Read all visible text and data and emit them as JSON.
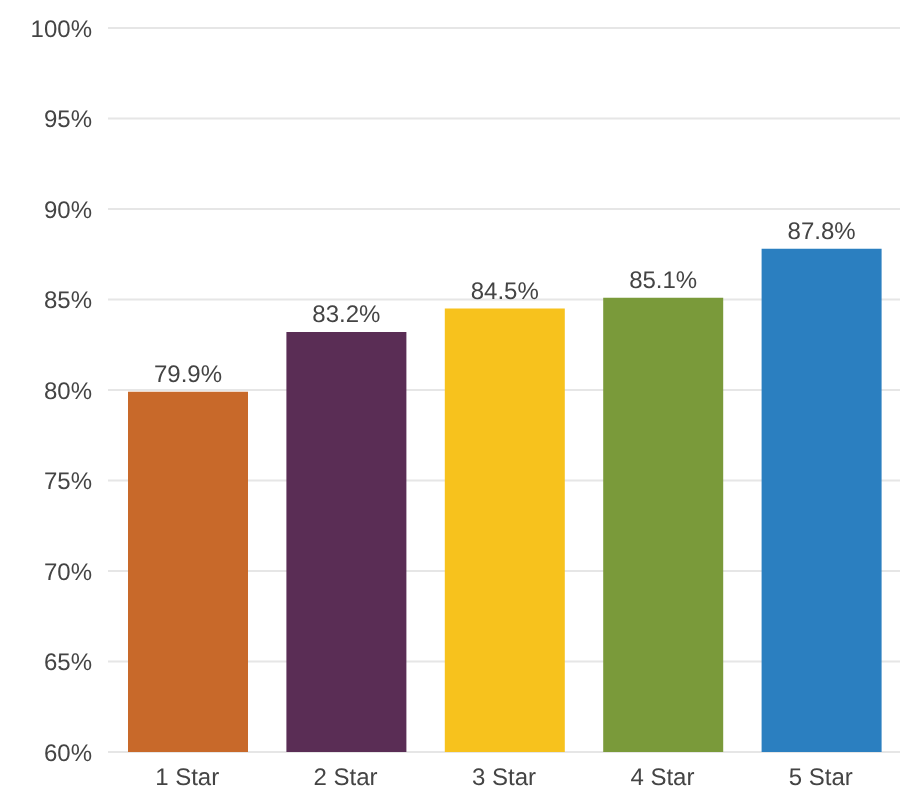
{
  "chart_data": {
    "type": "bar",
    "categories": [
      "1 Star",
      "2 Star",
      "3 Star",
      "4 Star",
      "5 Star"
    ],
    "values": [
      79.9,
      83.2,
      84.5,
      85.1,
      87.8
    ],
    "colors": [
      "#c8692a",
      "#5a2d55",
      "#f7c21d",
      "#7a9a3a",
      "#2b7fc0"
    ],
    "value_labels": [
      "79.9%",
      "83.2%",
      "84.5%",
      "85.1%",
      "87.8%"
    ],
    "ylim": [
      60,
      100
    ],
    "yticks": [
      {
        "value": 60,
        "label": "60%"
      },
      {
        "value": 65,
        "label": "65%"
      },
      {
        "value": 70,
        "label": "70%"
      },
      {
        "value": 75,
        "label": "75%"
      },
      {
        "value": 80,
        "label": "80%"
      },
      {
        "value": 85,
        "label": "85%"
      },
      {
        "value": 90,
        "label": "90%"
      },
      {
        "value": 95,
        "label": "95%"
      },
      {
        "value": 100,
        "label": "100%"
      }
    ],
    "grid": "y"
  }
}
